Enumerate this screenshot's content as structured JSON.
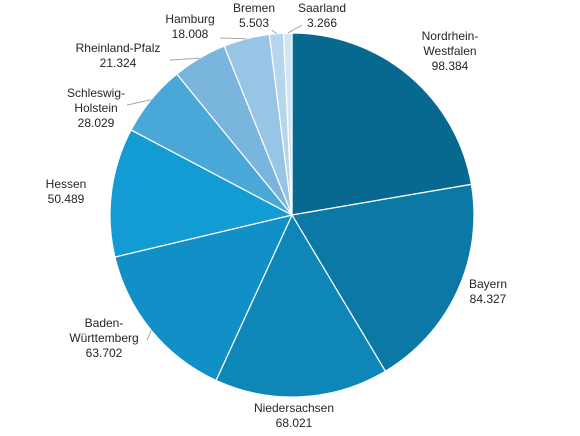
{
  "chart_data": {
    "type": "pie",
    "title": "",
    "categories": [
      "Nordrhein-Westfalen",
      "Bayern",
      "Niedersachsen",
      "Baden-Württemberg",
      "Hessen",
      "Schleswig-Holstein",
      "Rheinland-Pfalz",
      "Hamburg",
      "Bremen",
      "Saarland"
    ],
    "label_lines": [
      [
        "Nordrhein-",
        "Westfalen"
      ],
      [
        "Bayern"
      ],
      [
        "Niedersachsen"
      ],
      [
        "Baden-",
        "Württemberg"
      ],
      [
        "Hessen"
      ],
      [
        "Schleswig-",
        "Holstein"
      ],
      [
        "Rheinland-Pfalz"
      ],
      [
        "Hamburg"
      ],
      [
        "Bremen"
      ],
      [
        "Saarland"
      ]
    ],
    "values": [
      98384,
      84327,
      68021,
      63702,
      50489,
      28029,
      21324,
      18008,
      5503,
      3266
    ],
    "value_labels": [
      "98.384",
      "84.327",
      "68.021",
      "63.702",
      "50.489",
      "28.029",
      "21.324",
      "18.008",
      "5.503",
      "3.266"
    ],
    "colors": [
      "#07698f",
      "#0b78a6",
      "#0e86b8",
      "#1090c6",
      "#139bd3",
      "#4aa8d8",
      "#7ab5dd",
      "#98c4e5",
      "#b6d6ee",
      "#d2e5f4"
    ],
    "start_angle_deg": 0,
    "direction": "clockwise",
    "legend": "none",
    "data_labels": "outside"
  }
}
